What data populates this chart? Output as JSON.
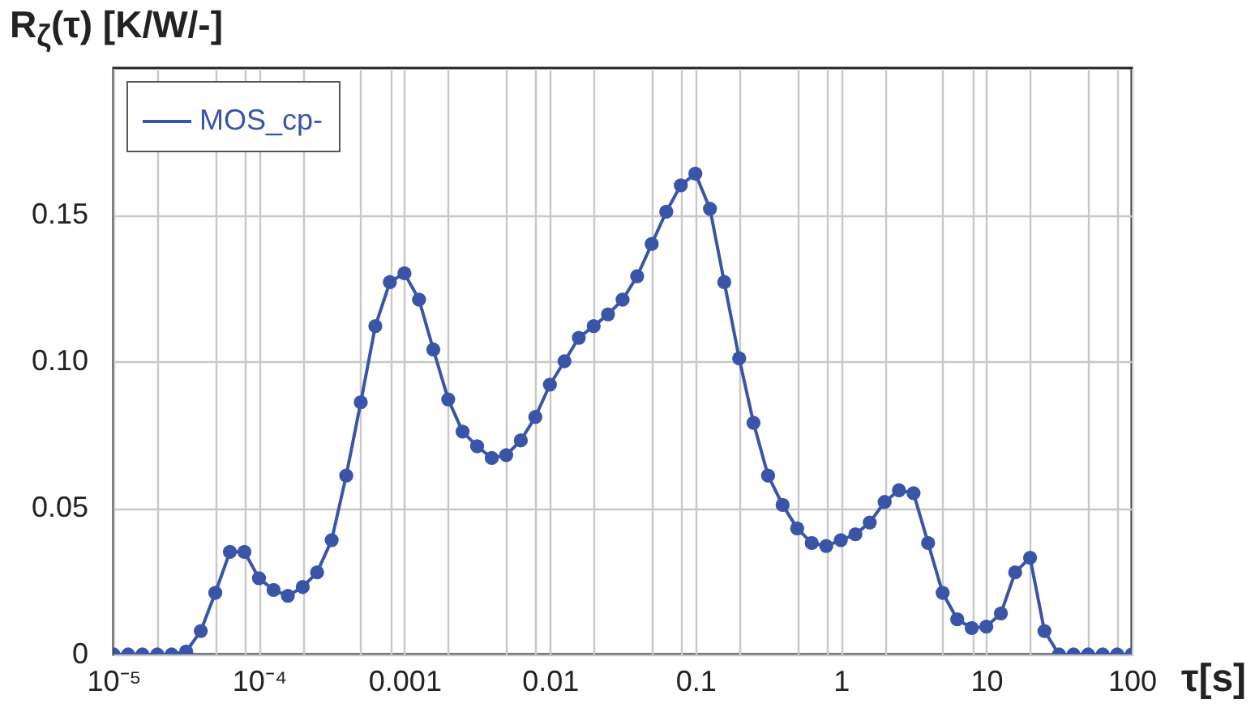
{
  "chart_data": {
    "type": "line",
    "xlabel": "τ[s]",
    "ylabel": "R$_{ζ}$(τ) [K/W/-]",
    "log": "x",
    "grid": true,
    "legend": "top left",
    "marker": "circle",
    "line_style": "solid",
    "xlim": [
      1e-05,
      100
    ],
    "ylim": [
      0,
      0.2
    ],
    "xticks": [
      {
        "value": 1e-05,
        "label": "10⁻⁵"
      },
      {
        "value": 2e-05,
        "label": null
      },
      {
        "value": 5e-05,
        "label": null
      },
      {
        "value": 8e-05,
        "label": null
      },
      {
        "value": 0.0001,
        "label": "10⁻⁴"
      },
      {
        "value": 0.0002,
        "label": null
      },
      {
        "value": 0.0005,
        "label": null
      },
      {
        "value": 0.0008,
        "label": null
      },
      0.001,
      {
        "value": 0.002,
        "label": null
      },
      {
        "value": 0.005,
        "label": null
      },
      {
        "value": 0.008,
        "label": null
      },
      0.01,
      {
        "value": 0.02,
        "label": null
      },
      {
        "value": 0.05,
        "label": null
      },
      {
        "value": 0.08,
        "label": null
      },
      0.1,
      {
        "value": 0.2,
        "label": null
      },
      {
        "value": 0.5,
        "label": null
      },
      {
        "value": 0.8,
        "label": null
      },
      1,
      {
        "value": 2,
        "label": null
      },
      {
        "value": 5,
        "label": null
      },
      {
        "value": 8,
        "label": null
      },
      10,
      {
        "value": 20,
        "label": null
      },
      {
        "value": 50,
        "label": null
      },
      {
        "value": 80,
        "label": null
      },
      100
    ],
    "yticks": [
      0,
      0.05,
      {
        "value": 0.1,
        "label": "0.10"
      },
      0.15
    ],
    "x": [
      1e-05,
      1.26e-05,
      1.58e-05,
      2e-05,
      2.51e-05,
      3.16e-05,
      3.98e-05,
      5.01e-05,
      6.31e-05,
      7.94e-05,
      0.0001,
      0.000126,
      0.000158,
      0.0002,
      0.000251,
      0.000316,
      0.000398,
      0.000501,
      0.000631,
      0.000794,
      0.001,
      0.00126,
      0.00158,
      0.002,
      0.00251,
      0.00316,
      0.00398,
      0.00501,
      0.00631,
      0.00794,
      0.01,
      0.0126,
      0.0158,
      0.02,
      0.0251,
      0.0316,
      0.0398,
      0.0501,
      0.0631,
      0.0794,
      0.1,
      0.126,
      0.158,
      0.2,
      0.251,
      0.316,
      0.398,
      0.501,
      0.631,
      0.794,
      1,
      1.26,
      1.58,
      2,
      2.51,
      3.16,
      3.98,
      5.01,
      6.31,
      7.94,
      10,
      12.6,
      15.8,
      20,
      25.1,
      31.6,
      39.8,
      50.1,
      63.1,
      79.4,
      100
    ],
    "series": [
      {
        "name": "MOS_cp-",
        "color": "#3a55a8",
        "values": [
          0,
          0,
          0,
          0,
          0,
          0.001,
          0.008,
          0.021,
          0.035,
          0.035,
          0.026,
          0.022,
          0.02,
          0.023,
          0.028,
          0.039,
          0.061,
          0.086,
          0.112,
          0.127,
          0.13,
          0.121,
          0.104,
          0.087,
          0.076,
          0.071,
          0.067,
          0.068,
          0.073,
          0.081,
          0.092,
          0.1,
          0.108,
          0.112,
          0.116,
          0.121,
          0.129,
          0.14,
          0.151,
          0.16,
          0.164,
          0.152,
          0.127,
          0.101,
          0.079,
          0.061,
          0.051,
          0.043,
          0.038,
          0.037,
          0.039,
          0.041,
          0.045,
          0.052,
          0.056,
          0.055,
          0.038,
          0.021,
          0.012,
          0.009,
          0.0095,
          0.014,
          0.028,
          0.033,
          0.008,
          0,
          0,
          0,
          0,
          0,
          0
        ]
      }
    ]
  }
}
